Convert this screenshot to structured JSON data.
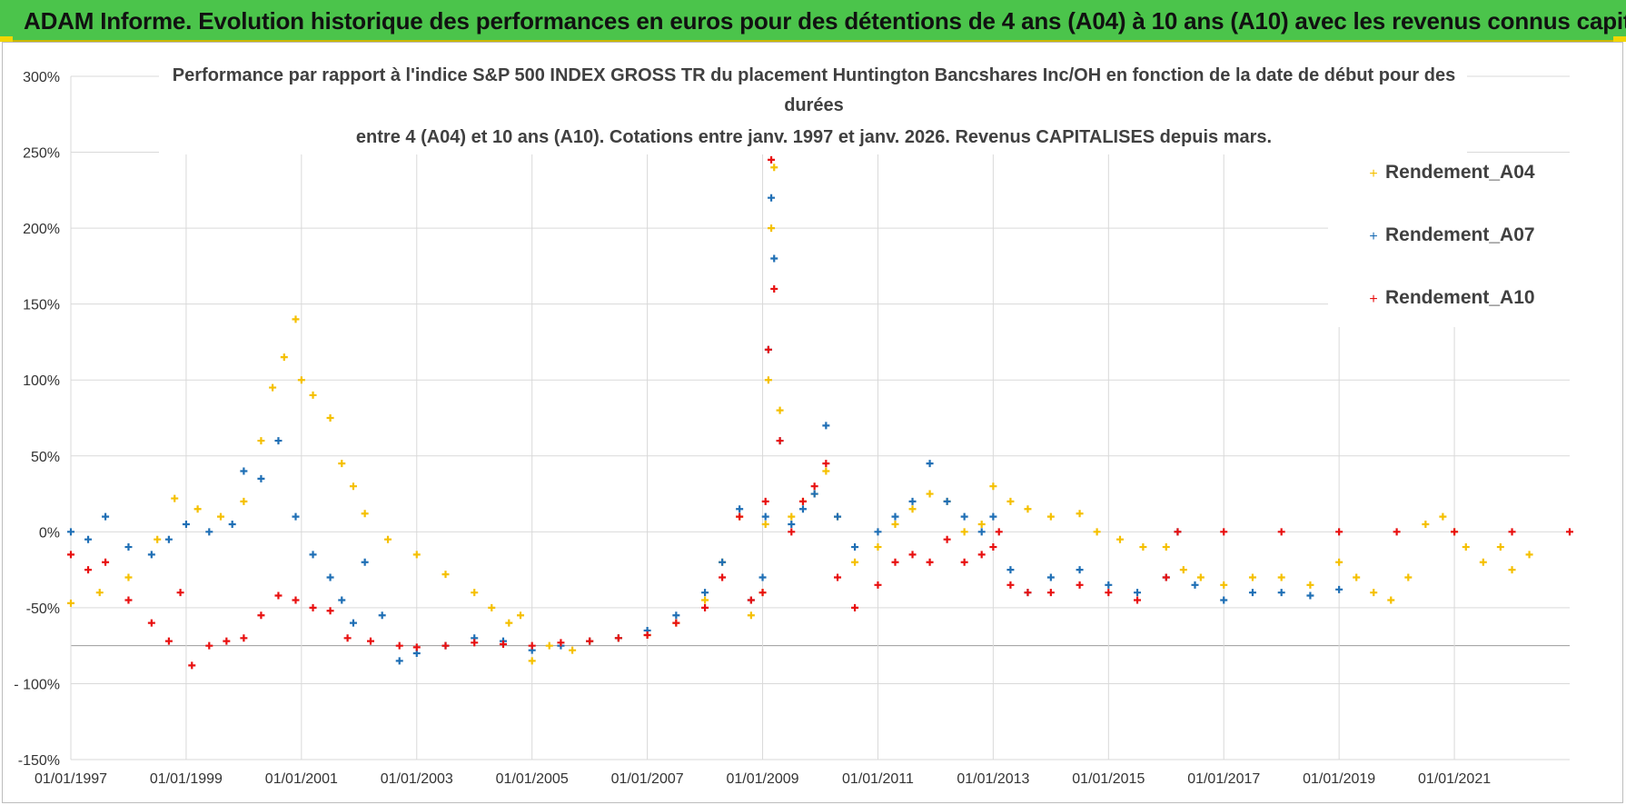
{
  "banner": {
    "title": "ADAM Informe. Evolution historique des performances en euros pour des détentions de 4 ans (A04) à 10 ans (A10) avec les revenus connus capitalisés"
  },
  "chart_data": {
    "type": "scatter",
    "title_lines": [
      "Performance par rapport à l'indice S&P 500 INDEX GROSS TR  du placement Huntington Bancshares Inc/OH en fonction de la date de début pour des",
      "durées",
      "entre 4 (A04) et 10 ans (A10).  Cotations entre janv. 1997 et janv. 2026. Revenus CAPITALISES depuis mars."
    ],
    "xlabel": "",
    "ylabel": "",
    "xlim": [
      1997.0,
      2023.0
    ],
    "ylim": [
      -150,
      300
    ],
    "y_ticks": [
      300,
      250,
      200,
      150,
      100,
      50,
      0,
      -50,
      -100,
      -150
    ],
    "y_tick_labels": [
      "300%",
      "250%",
      "200%",
      "150%",
      "100%",
      "50%",
      "0%",
      "-50%",
      "- 100%",
      "-150%"
    ],
    "x_ticks": [
      1997,
      1999,
      2001,
      2003,
      2005,
      2007,
      2009,
      2011,
      2013,
      2015,
      2017,
      2019,
      2021
    ],
    "x_tick_labels": [
      "01/01/1997",
      "01/01/1999",
      "01/01/2001",
      "01/01/2003",
      "01/01/2005",
      "01/01/2007",
      "01/01/2009",
      "01/01/2011",
      "01/01/2013",
      "01/01/2015",
      "01/01/2017",
      "01/01/2019",
      "01/01/2021"
    ],
    "legend_position": "top-right",
    "series": [
      {
        "name": "Rendement_A04",
        "color": "#f5c000",
        "x": [
          1997.0,
          1997.5,
          1998.0,
          1998.5,
          1998.8,
          1999.2,
          1999.6,
          2000.0,
          2000.3,
          2000.5,
          2000.7,
          2000.9,
          2001.0,
          2001.2,
          2001.5,
          2001.7,
          2001.9,
          2002.1,
          2002.5,
          2003.0,
          2003.5,
          2004.0,
          2004.3,
          2004.6,
          2004.8,
          2005.0,
          2005.3,
          2005.7,
          2006.0,
          2006.5,
          2007.0,
          2007.5,
          2008.0,
          2008.3,
          2008.6,
          2008.8,
          2009.0,
          2009.05,
          2009.1,
          2009.15,
          2009.2,
          2009.3,
          2009.5,
          2009.7,
          2009.9,
          2010.1,
          2010.3,
          2010.6,
          2011.0,
          2011.3,
          2011.6,
          2011.9,
          2012.2,
          2012.5,
          2012.8,
          2013.0,
          2013.3,
          2013.6,
          2014.0,
          2014.5,
          2014.8,
          2015.2,
          2015.6,
          2016.0,
          2016.3,
          2016.6,
          2017.0,
          2017.5,
          2018.0,
          2018.5,
          2019.0,
          2019.3,
          2019.6,
          2019.9,
          2020.2,
          2020.5,
          2020.8,
          2021.0,
          2021.2,
          2021.5,
          2021.8,
          2022.0,
          2022.3
        ],
        "values": [
          -47,
          -40,
          -30,
          -5,
          22,
          15,
          10,
          20,
          60,
          95,
          115,
          140,
          100,
          90,
          75,
          45,
          30,
          12,
          -5,
          -15,
          -28,
          -40,
          -50,
          -60,
          -55,
          -85,
          -75,
          -78,
          -72,
          -70,
          -68,
          -60,
          -45,
          -20,
          10,
          -55,
          -40,
          5,
          100,
          200,
          240,
          80,
          10,
          20,
          25,
          40,
          10,
          -20,
          -10,
          5,
          15,
          25,
          20,
          0,
          5,
          30,
          20,
          15,
          10,
          12,
          0,
          -5,
          -10,
          -10,
          -25,
          -30,
          -35,
          -30,
          -30,
          -35,
          -20,
          -30,
          -40,
          -45,
          -30,
          5,
          10,
          0,
          -10,
          -20,
          -10,
          -25,
          -15
        ]
      },
      {
        "name": "Rendement_A07",
        "color": "#1f6fb5",
        "x": [
          1997.0,
          1997.3,
          1997.6,
          1998.0,
          1998.4,
          1998.7,
          1999.0,
          1999.4,
          1999.8,
          2000.0,
          2000.3,
          2000.6,
          2000.9,
          2001.2,
          2001.5,
          2001.7,
          2001.9,
          2002.1,
          2002.4,
          2002.7,
          2003.0,
          2003.5,
          2004.0,
          2004.5,
          2005.0,
          2005.5,
          2006.0,
          2006.5,
          2007.0,
          2007.5,
          2008.0,
          2008.3,
          2008.6,
          2008.8,
          2009.0,
          2009.05,
          2009.1,
          2009.15,
          2009.2,
          2009.3,
          2009.5,
          2009.7,
          2009.9,
          2010.1,
          2010.3,
          2010.6,
          2011.0,
          2011.3,
          2011.6,
          2011.9,
          2012.2,
          2012.5,
          2012.8,
          2013.0,
          2013.3,
          2013.6,
          2014.0,
          2014.5,
          2015.0,
          2015.5,
          2016.0,
          2016.2,
          2016.5,
          2017.0,
          2017.5,
          2018.0,
          2018.5,
          2019.0
        ],
        "values": [
          0,
          -5,
          10,
          -10,
          -15,
          -5,
          5,
          0,
          5,
          40,
          35,
          60,
          10,
          -15,
          -30,
          -45,
          -60,
          -20,
          -55,
          -85,
          -80,
          -75,
          -70,
          -72,
          -78,
          -75,
          -72,
          -70,
          -65,
          -55,
          -40,
          -20,
          15,
          -45,
          -30,
          10,
          120,
          220,
          180,
          60,
          5,
          15,
          25,
          70,
          10,
          -10,
          0,
          10,
          20,
          45,
          20,
          10,
          0,
          10,
          -25,
          -40,
          -30,
          -25,
          -35,
          -40,
          -30,
          0,
          -35,
          -45,
          -40,
          -40,
          -42,
          -38
        ]
      },
      {
        "name": "Rendement_A10",
        "color": "#e81010",
        "x": [
          1997.0,
          1997.3,
          1997.6,
          1998.0,
          1998.4,
          1998.7,
          1998.9,
          1999.1,
          1999.4,
          1999.7,
          2000.0,
          2000.3,
          2000.6,
          2000.9,
          2001.2,
          2001.5,
          2001.8,
          2002.2,
          2002.7,
          2003.0,
          2003.5,
          2004.0,
          2004.5,
          2005.0,
          2005.5,
          2006.0,
          2006.5,
          2007.0,
          2007.5,
          2008.0,
          2008.3,
          2008.6,
          2008.8,
          2009.0,
          2009.05,
          2009.1,
          2009.15,
          2009.2,
          2009.3,
          2009.5,
          2009.7,
          2009.9,
          2010.1,
          2010.3,
          2010.6,
          2011.0,
          2011.3,
          2011.6,
          2011.9,
          2012.2,
          2012.5,
          2012.8,
          2013.0,
          2013.1,
          2013.3,
          2013.6,
          2014.0,
          2014.5,
          2015.0,
          2015.5,
          2016.0,
          2016.2,
          2017.0,
          2018.0,
          2019.0,
          2020.0,
          2021.0,
          2022.0,
          2023.0
        ],
        "values": [
          -15,
          -25,
          -20,
          -45,
          -60,
          -72,
          -40,
          -88,
          -75,
          -72,
          -70,
          -55,
          -42,
          -45,
          -50,
          -52,
          -70,
          -72,
          -75,
          -76,
          -75,
          -73,
          -74,
          -75,
          -73,
          -72,
          -70,
          -68,
          -60,
          -50,
          -30,
          10,
          -45,
          -40,
          20,
          120,
          245,
          160,
          60,
          0,
          20,
          30,
          45,
          -30,
          -50,
          -35,
          -20,
          -15,
          -20,
          -5,
          -20,
          -15,
          -10,
          0,
          -35,
          -40,
          -40,
          -35,
          -40,
          -45,
          -30,
          0,
          0,
          0,
          0,
          0,
          0,
          0,
          0
        ]
      }
    ]
  }
}
